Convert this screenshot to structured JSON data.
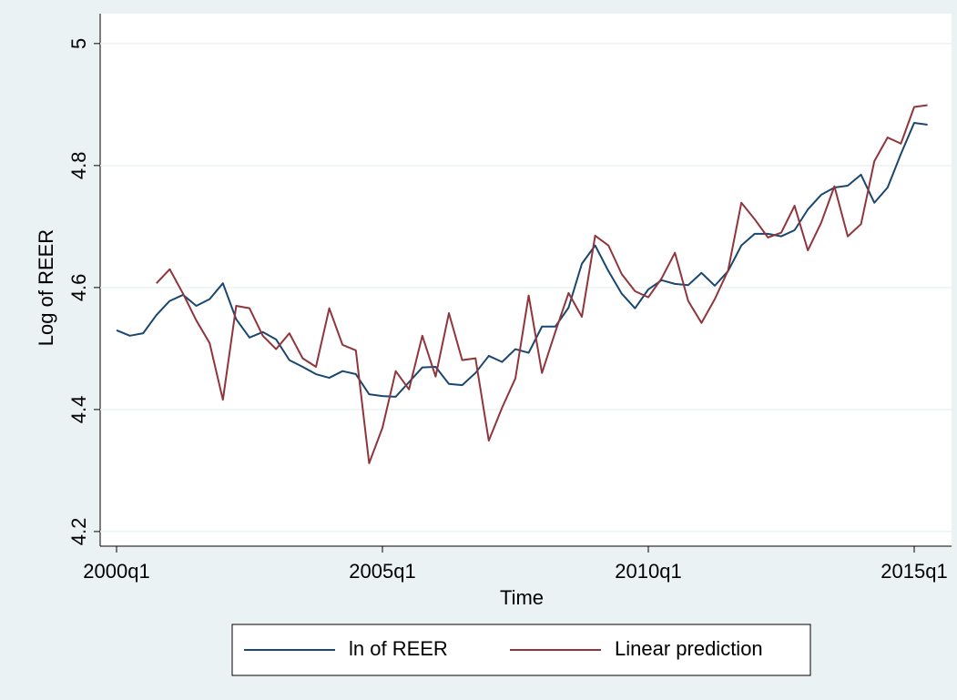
{
  "chart_data": {
    "type": "line",
    "xlabel": "Time",
    "ylabel": "Log of REER",
    "categories": [
      "2000q1",
      null,
      null,
      null,
      null,
      null,
      null,
      null,
      null,
      null,
      null,
      null,
      null,
      null,
      null,
      null,
      null,
      null,
      null,
      null,
      "2005q1",
      null,
      null,
      null,
      null,
      null,
      null,
      null,
      null,
      null,
      null,
      null,
      null,
      null,
      null,
      null,
      null,
      null,
      null,
      null,
      "2010q1",
      null,
      null,
      null,
      null,
      null,
      null,
      null,
      null,
      null,
      null,
      null,
      null,
      null,
      null,
      null,
      null,
      null,
      null,
      null,
      "2015q1",
      null
    ],
    "series": [
      {
        "name": "ln of REER",
        "color": "#1a476f",
        "values": [
          4.53,
          4.521,
          4.525,
          4.555,
          4.578,
          4.588,
          4.57,
          4.581,
          4.607,
          4.548,
          4.518,
          4.527,
          4.515,
          4.481,
          4.47,
          4.458,
          4.452,
          4.463,
          4.458,
          4.425,
          4.422,
          4.421,
          4.445,
          4.469,
          4.47,
          4.442,
          4.44,
          4.46,
          4.488,
          4.478,
          4.499,
          4.493,
          4.536,
          4.536,
          4.567,
          4.639,
          4.669,
          4.627,
          4.59,
          4.566,
          4.597,
          4.612,
          4.606,
          4.604,
          4.624,
          4.603,
          4.627,
          4.669,
          4.688,
          4.688,
          4.684,
          4.694,
          4.728,
          4.752,
          4.764,
          4.767,
          4.785,
          4.739,
          4.764,
          4.819,
          4.87,
          4.867
        ]
      },
      {
        "name": "Linear prediction",
        "color": "#90353b",
        "values": [
          null,
          null,
          null,
          4.607,
          4.63,
          4.59,
          4.546,
          4.509,
          4.416,
          4.57,
          4.566,
          4.521,
          4.499,
          4.525,
          4.484,
          4.47,
          4.566,
          4.506,
          4.497,
          4.312,
          4.37,
          4.463,
          4.433,
          4.521,
          4.454,
          4.558,
          4.481,
          4.484,
          4.349,
          4.403,
          4.451,
          4.587,
          4.46,
          4.527,
          4.591,
          4.552,
          4.685,
          4.669,
          4.622,
          4.594,
          4.584,
          4.615,
          4.657,
          4.578,
          4.542,
          4.581,
          4.628,
          4.739,
          4.712,
          4.682,
          4.69,
          4.734,
          4.661,
          4.706,
          4.766,
          4.684,
          4.704,
          4.807,
          4.846,
          4.836,
          4.896,
          4.899
        ]
      }
    ],
    "ylim": [
      4.176,
      5.049
    ],
    "yticks": [
      4.2,
      4.4,
      4.6,
      4.8,
      5
    ],
    "grid": true,
    "legend": "bottom"
  }
}
